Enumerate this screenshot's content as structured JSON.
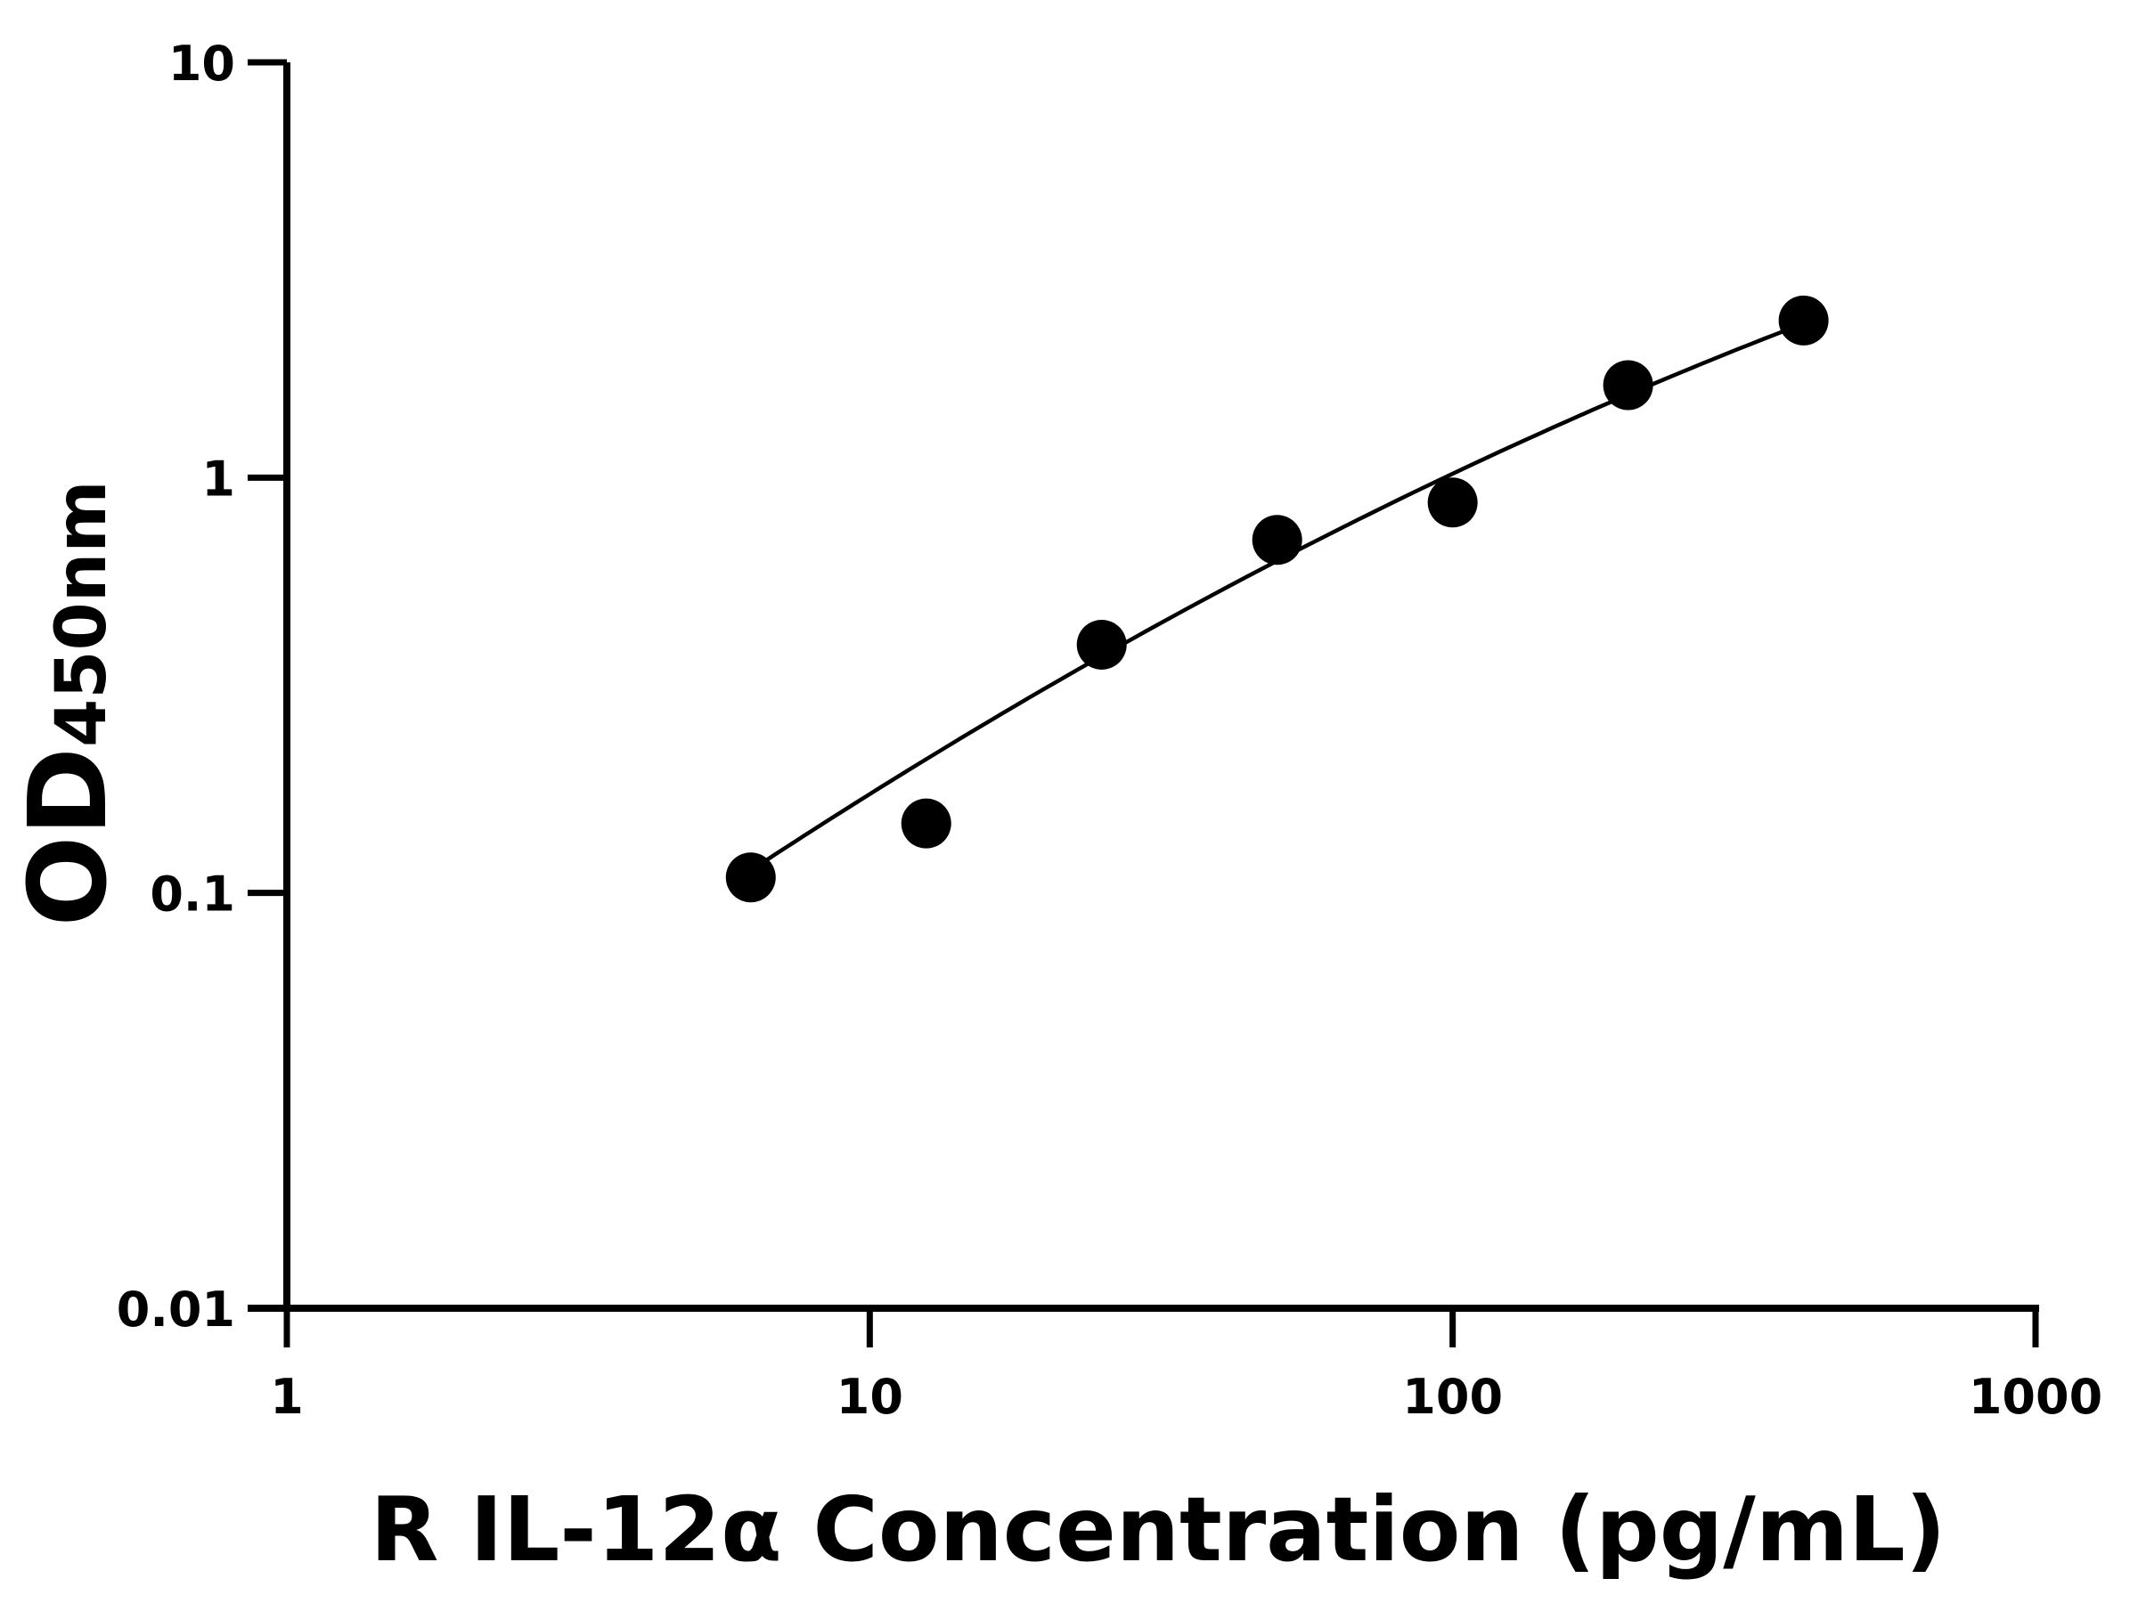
{
  "chart_data": {
    "type": "scatter",
    "xlabel": "R IL-12α Concentration (pg/mL)",
    "ylabel_main": "OD",
    "ylabel_sub": "450nm",
    "x_scale": "log",
    "y_scale": "log",
    "xlim": [
      1,
      1000
    ],
    "ylim": [
      0.01,
      10
    ],
    "x_ticks": [
      "1",
      "10",
      "100",
      "1000"
    ],
    "y_ticks": [
      "0.01",
      "0.1",
      "1",
      "10"
    ],
    "grid": false,
    "legend": "none",
    "colors": {
      "points": "#000000",
      "curve": "#000000",
      "axes": "#000000"
    },
    "points": [
      {
        "x": 6.25,
        "y": 0.109
      },
      {
        "x": 12.5,
        "y": 0.147
      },
      {
        "x": 25,
        "y": 0.396
      },
      {
        "x": 50,
        "y": 0.708
      },
      {
        "x": 100,
        "y": 0.871
      },
      {
        "x": 200,
        "y": 1.67
      },
      {
        "x": 400,
        "y": 2.39
      }
    ],
    "fit_curve": [
      {
        "x": 6.25,
        "y": 0.112
      },
      {
        "x": 12.5,
        "y": 0.21
      },
      {
        "x": 25,
        "y": 0.385
      },
      {
        "x": 50,
        "y": 0.63
      },
      {
        "x": 100,
        "y": 0.99
      },
      {
        "x": 200,
        "y": 1.58
      },
      {
        "x": 400,
        "y": 2.38
      }
    ]
  }
}
